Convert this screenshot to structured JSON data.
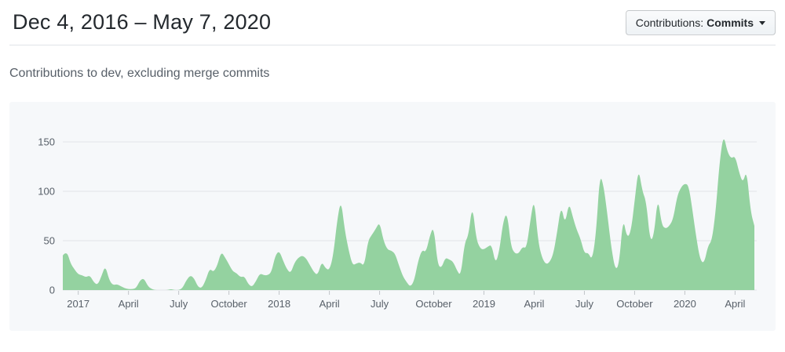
{
  "header": {
    "title": "Dec 4, 2016 – May 7, 2020",
    "contributions_button": {
      "prefix": "Contributions:",
      "value": "Commits"
    }
  },
  "subtitle": "Contributions to dev, excluding merge commits",
  "colors": {
    "area_fill": "#94d2a0",
    "panel_bg": "#f6f8fa",
    "grid": "#e1e4e8",
    "axis_text": "#586069",
    "tick_mark": "#c0c4c8",
    "title_text": "#24292e",
    "subtitle_text": "#586069"
  },
  "chart_data": {
    "type": "area",
    "title": "Contributions to dev, excluding merge commits",
    "x_unit": "week",
    "start_date": "Dec 4, 2016",
    "end_date": "May 7, 2020",
    "ylabel": "Commits",
    "ylim": [
      0,
      160
    ],
    "yticks": [
      0,
      50,
      100,
      150
    ],
    "grid": true,
    "legend": false,
    "xticks": [
      {
        "label": "2017",
        "week": 4
      },
      {
        "label": "April",
        "week": 17
      },
      {
        "label": "July",
        "week": 30
      },
      {
        "label": "October",
        "week": 43
      },
      {
        "label": "2018",
        "week": 56
      },
      {
        "label": "April",
        "week": 69
      },
      {
        "label": "July",
        "week": 82
      },
      {
        "label": "October",
        "week": 96
      },
      {
        "label": "2019",
        "week": 109
      },
      {
        "label": "April",
        "week": 122
      },
      {
        "label": "July",
        "week": 135
      },
      {
        "label": "October",
        "week": 148
      },
      {
        "label": "2020",
        "week": 161
      },
      {
        "label": "April",
        "week": 174
      }
    ],
    "values": [
      35,
      40,
      27,
      21,
      16,
      15,
      13,
      15,
      8,
      5,
      14,
      25,
      10,
      5,
      6,
      4,
      2,
      1,
      1,
      2,
      10,
      12,
      4,
      1,
      0,
      0,
      0,
      0,
      1,
      0,
      0,
      2,
      10,
      15,
      12,
      3,
      2,
      10,
      22,
      18,
      25,
      39,
      33,
      26,
      19,
      17,
      13,
      14,
      6,
      3,
      9,
      17,
      15,
      15,
      18,
      35,
      40,
      30,
      21,
      17,
      28,
      33,
      35,
      32,
      25,
      18,
      15,
      29,
      22,
      20,
      35,
      70,
      92,
      60,
      40,
      25,
      27,
      28,
      24,
      50,
      56,
      62,
      69,
      50,
      41,
      40,
      37,
      25,
      14,
      8,
      3,
      10,
      30,
      41,
      38,
      55,
      65,
      26,
      22,
      33,
      31,
      29,
      20,
      14,
      48,
      55,
      87,
      52,
      42,
      41,
      44,
      46,
      26,
      40,
      70,
      79,
      44,
      37,
      37,
      44,
      42,
      70,
      94,
      50,
      33,
      26,
      28,
      37,
      60,
      86,
      66,
      89,
      74,
      61,
      52,
      37,
      38,
      30,
      56,
      118,
      105,
      75,
      42,
      20,
      26,
      74,
      53,
      58,
      90,
      124,
      100,
      90,
      49,
      55,
      95,
      66,
      62,
      65,
      72,
      95,
      104,
      108,
      106,
      80,
      52,
      30,
      27,
      45,
      50,
      80,
      130,
      158,
      140,
      133,
      136,
      120,
      108,
      122,
      80,
      65
    ]
  }
}
